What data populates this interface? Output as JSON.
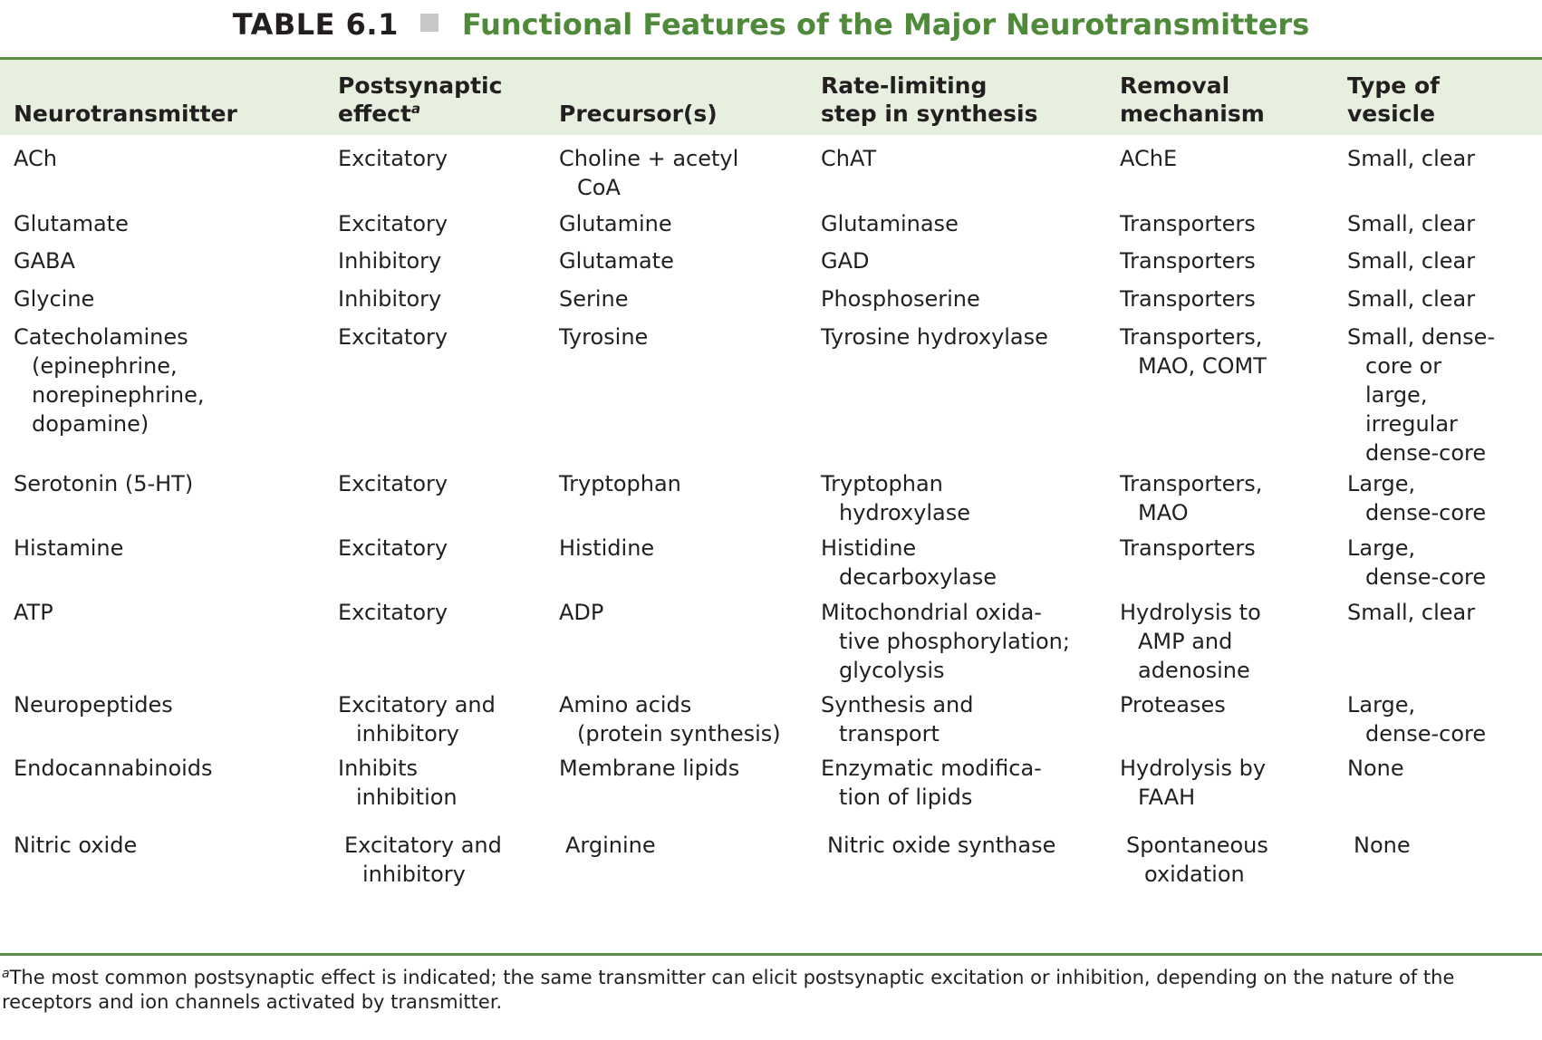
{
  "table": {
    "label": "TABLE 6.1",
    "title": "Functional Features of the Major Neurotransmitters",
    "headers": [
      {
        "text": "Neurotransmitter",
        "sup": ""
      },
      {
        "text": "Postsynaptic\neffect",
        "sup": "a"
      },
      {
        "text": "Precursor(s)",
        "sup": ""
      },
      {
        "text": "Rate-limiting\nstep in synthesis",
        "sup": ""
      },
      {
        "text": "Removal\nmechanism",
        "sup": ""
      },
      {
        "text": "Type of\nvesicle",
        "sup": ""
      }
    ],
    "rows": [
      [
        "ACh",
        "Excitatory",
        "Choline + acetyl\nCoA",
        "ChAT",
        "AChE",
        "Small, clear"
      ],
      [
        "Glutamate",
        "Excitatory",
        "Glutamine",
        "Glutaminase",
        "Transporters",
        "Small, clear"
      ],
      [
        "GABA",
        "Inhibitory",
        "Glutamate",
        "GAD",
        "Transporters",
        "Small, clear"
      ],
      [
        "Glycine",
        "Inhibitory",
        "Serine",
        "Phosphoserine",
        "Transporters",
        "Small, clear"
      ],
      [
        "Catecholamines\n(epinephrine,\nnorepinephrine,\ndopamine)",
        "Excitatory",
        "Tyrosine",
        "Tyrosine hydroxylase",
        "Transporters,\nMAO, COMT",
        "Small, dense-\ncore or\nlarge,\nirregular\ndense-core"
      ],
      [
        "Serotonin (5-HT)",
        "Excitatory",
        "Tryptophan",
        "Tryptophan\nhydroxylase",
        "Transporters,\nMAO",
        "Large,\ndense-core"
      ],
      [
        "Histamine",
        "Excitatory",
        "Histidine",
        "Histidine\ndecarboxylase",
        "Transporters",
        "Large,\ndense-core"
      ],
      [
        "ATP",
        "Excitatory",
        "ADP",
        "Mitochondrial oxida-\ntive phosphorylation;\nglycolysis",
        "Hydrolysis to\nAMP and\nadenosine",
        "Small, clear"
      ],
      [
        "Neuropeptides",
        "Excitatory and\ninhibitory",
        "Amino acids\n(protein synthesis)",
        "Synthesis and\ntransport",
        "Proteases",
        "Large,\ndense-core"
      ],
      [
        "Endocannabinoids",
        "Inhibits\ninhibition",
        "Membrane lipids",
        "Enzymatic modifica-\ntion of lipids",
        "Hydrolysis by\nFAAH",
        "None"
      ],
      [
        "Nitric oxide",
        "Excitatory and\ninhibitory",
        "Arginine",
        "Nitric oxide synthase",
        "Spontaneous\noxidation",
        "None"
      ]
    ],
    "footnote": {
      "marker": "a",
      "text": "The most common postsynaptic effect is indicated; the same transmitter can elicit postsynaptic excitation or inhibition, depending on the nature of the receptors and ion channels activated by transmitter."
    }
  },
  "colors": {
    "title_green": "#4f8a3a",
    "rule_green": "#5a8f45",
    "header_bg": "#e7f0df",
    "separator_gray": "#c5c7c9"
  }
}
